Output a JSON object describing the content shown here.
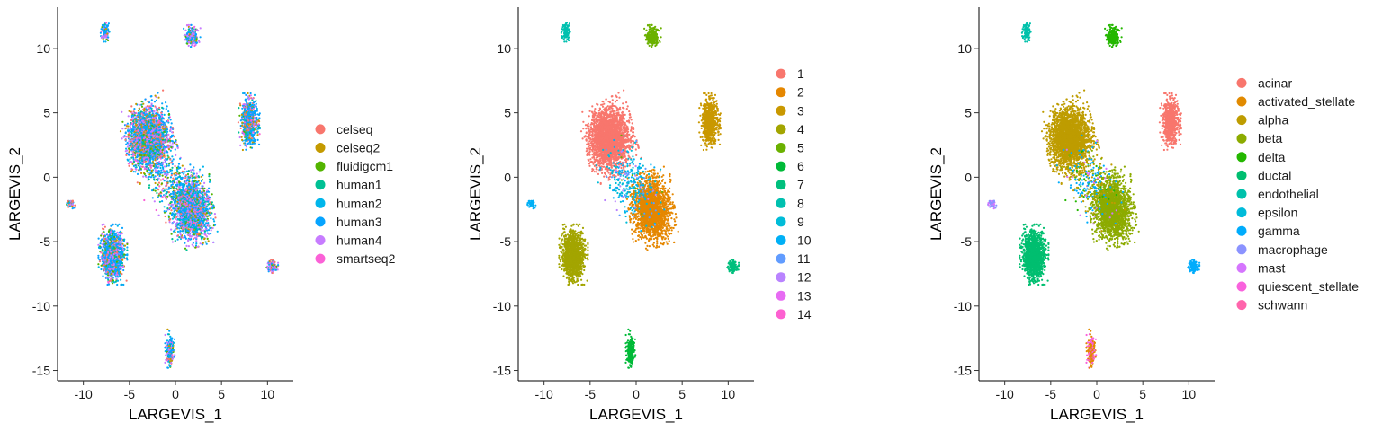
{
  "chart_data": [
    {
      "type": "scatter",
      "title": "",
      "xlabel": "LARGEVIS_1",
      "ylabel": "LARGEVIS_2",
      "xlim": [
        -12.8,
        12.8
      ],
      "ylim": [
        -15.8,
        13.2
      ],
      "x_ticks": [
        -10,
        -5,
        0,
        5,
        10
      ],
      "y_ticks": [
        -15,
        -10,
        -5,
        0,
        5,
        10
      ],
      "x_tick_labels": [
        "-10",
        "-5",
        "0",
        "5",
        "10"
      ],
      "y_tick_labels": [
        "-15",
        "-10",
        "-5",
        "0",
        "5",
        "10"
      ],
      "grid": false,
      "legend_position": "right",
      "color_by": "dataset",
      "series": [
        {
          "name": "celseq",
          "color": "#F8766D"
        },
        {
          "name": "celseq2",
          "color": "#C49A00"
        },
        {
          "name": "fluidigcm1",
          "color": "#53B400"
        },
        {
          "name": "human1",
          "color": "#00C094"
        },
        {
          "name": "human2",
          "color": "#00B6EB"
        },
        {
          "name": "human3",
          "color": "#06A4FF"
        },
        {
          "name": "human4",
          "color": "#C77CFF"
        },
        {
          "name": "smartseq2",
          "color": "#FB61D7"
        }
      ],
      "clusters": [
        {
          "x": -2.9,
          "y": 3.0,
          "sx": 1.05,
          "sy": 1.15,
          "rot": 0.35,
          "n": 2600,
          "mix": {
            "celseq": 0.08,
            "celseq2": 0.12,
            "fluidigcm1": 0.06,
            "human1": 0.08,
            "human2": 0.06,
            "human3": 0.33,
            "human4": 0.22,
            "smartseq2": 0.05
          }
        },
        {
          "x": 1.7,
          "y": -2.5,
          "sx": 0.95,
          "sy": 1.15,
          "rot": 0.2,
          "n": 2000,
          "mix": {
            "celseq": 0.05,
            "celseq2": 0.08,
            "fluidigcm1": 0.1,
            "human1": 0.1,
            "human2": 0.07,
            "human3": 0.3,
            "human4": 0.28,
            "smartseq2": 0.02
          }
        },
        {
          "x": -6.8,
          "y": -6.0,
          "sx": 0.6,
          "sy": 0.9,
          "rot": 0.0,
          "n": 1300,
          "mix": {
            "celseq": 0.06,
            "celseq2": 0.07,
            "fluidigcm1": 0.06,
            "human1": 0.07,
            "human2": 0.08,
            "human3": 0.4,
            "human4": 0.22,
            "smartseq2": 0.04
          }
        },
        {
          "x": 8.0,
          "y": 4.3,
          "sx": 0.45,
          "sy": 0.85,
          "rot": 0.0,
          "n": 700,
          "mix": {
            "celseq": 0.1,
            "celseq2": 0.12,
            "fluidigcm1": 0.05,
            "human1": 0.05,
            "human2": 0.06,
            "human3": 0.45,
            "human4": 0.12,
            "smartseq2": 0.05
          }
        },
        {
          "x": 1.8,
          "y": 10.9,
          "sx": 0.35,
          "sy": 0.35,
          "rot": 0.0,
          "n": 260,
          "mix": {
            "celseq": 0.05,
            "celseq2": 0.05,
            "fluidigcm1": 0.08,
            "human1": 0.08,
            "human2": 0.08,
            "human3": 0.3,
            "human4": 0.32,
            "smartseq2": 0.04
          }
        },
        {
          "x": -7.6,
          "y": 11.3,
          "sx": 0.2,
          "sy": 0.3,
          "rot": 0.0,
          "n": 110,
          "mix": {
            "celseq": 0.05,
            "celseq2": 0.05,
            "fluidigcm1": 0.05,
            "human1": 0.05,
            "human2": 0.1,
            "human3": 0.45,
            "human4": 0.2,
            "smartseq2": 0.05
          }
        },
        {
          "x": 10.5,
          "y": -6.9,
          "sx": 0.25,
          "sy": 0.22,
          "rot": 0.0,
          "n": 120,
          "mix": {
            "celseq": 0.15,
            "celseq2": 0.05,
            "fluidigcm1": 0.05,
            "human1": 0.05,
            "human2": 0.05,
            "human3": 0.25,
            "human4": 0.35,
            "smartseq2": 0.05
          }
        },
        {
          "x": -0.6,
          "y": -13.5,
          "sx": 0.2,
          "sy": 0.65,
          "rot": 0.0,
          "n": 220,
          "mix": {
            "celseq": 0.05,
            "celseq2": 0.05,
            "fluidigcm1": 0.05,
            "human1": 0.05,
            "human2": 0.1,
            "human3": 0.35,
            "human4": 0.3,
            "smartseq2": 0.05
          }
        },
        {
          "x": -11.4,
          "y": -2.1,
          "sx": 0.2,
          "sy": 0.14,
          "rot": 0.0,
          "n": 45,
          "mix": {
            "celseq": 0.25,
            "celseq2": 0.05,
            "fluidigcm1": 0.05,
            "human1": 0.05,
            "human2": 0.1,
            "human3": 0.3,
            "human4": 0.15,
            "smartseq2": 0.05
          }
        },
        {
          "x": -0.6,
          "y": -0.4,
          "sx": 1.6,
          "sy": 1.1,
          "rot": -0.7,
          "n": 300,
          "mix": {
            "celseq": 0.15,
            "celseq2": 0.05,
            "fluidigcm1": 0.1,
            "human1": 0.1,
            "human2": 0.1,
            "human3": 0.35,
            "human4": 0.1,
            "smartseq2": 0.05
          }
        }
      ]
    },
    {
      "type": "scatter",
      "title": "",
      "xlabel": "LARGEVIS_1",
      "ylabel": "LARGEVIS_2",
      "xlim": [
        -12.8,
        12.8
      ],
      "ylim": [
        -15.8,
        13.2
      ],
      "x_ticks": [
        -10,
        -5,
        0,
        5,
        10
      ],
      "y_ticks": [
        -15,
        -10,
        -5,
        0,
        5,
        10
      ],
      "x_tick_labels": [
        "-10",
        "-5",
        "0",
        "5",
        "10"
      ],
      "y_tick_labels": [
        "-15",
        "-10",
        "-5",
        "0",
        "5",
        "10"
      ],
      "grid": false,
      "legend_position": "right",
      "color_by": "cluster",
      "series": [
        {
          "name": "1",
          "color": "#F8766D"
        },
        {
          "name": "2",
          "color": "#E58700"
        },
        {
          "name": "3",
          "color": "#C99800"
        },
        {
          "name": "4",
          "color": "#A3A500"
        },
        {
          "name": "5",
          "color": "#6BB100"
        },
        {
          "name": "6",
          "color": "#00BA38"
        },
        {
          "name": "7",
          "color": "#00BF7D"
        },
        {
          "name": "8",
          "color": "#00C0AF"
        },
        {
          "name": "9",
          "color": "#00BCD8"
        },
        {
          "name": "10",
          "color": "#00B0F6"
        },
        {
          "name": "11",
          "color": "#619CFF"
        },
        {
          "name": "12",
          "color": "#B983FF"
        },
        {
          "name": "13",
          "color": "#E76BF3"
        },
        {
          "name": "14",
          "color": "#FD61D1"
        }
      ],
      "clusters": [
        {
          "x": -2.9,
          "y": 3.0,
          "sx": 1.05,
          "sy": 1.15,
          "rot": 0.35,
          "n": 2600,
          "mix": {
            "1": 1.0
          }
        },
        {
          "x": 1.7,
          "y": -2.5,
          "sx": 0.95,
          "sy": 1.15,
          "rot": 0.2,
          "n": 2000,
          "mix": {
            "2": 1.0
          }
        },
        {
          "x": -6.8,
          "y": -6.0,
          "sx": 0.6,
          "sy": 0.9,
          "rot": 0.0,
          "n": 1300,
          "mix": {
            "4": 1.0
          }
        },
        {
          "x": 8.0,
          "y": 4.3,
          "sx": 0.45,
          "sy": 0.85,
          "rot": 0.0,
          "n": 700,
          "mix": {
            "3": 1.0
          }
        },
        {
          "x": 1.8,
          "y": 10.9,
          "sx": 0.35,
          "sy": 0.35,
          "rot": 0.0,
          "n": 260,
          "mix": {
            "5": 1.0
          }
        },
        {
          "x": -7.6,
          "y": 11.3,
          "sx": 0.2,
          "sy": 0.3,
          "rot": 0.0,
          "n": 110,
          "mix": {
            "8": 1.0
          }
        },
        {
          "x": 10.5,
          "y": -6.9,
          "sx": 0.25,
          "sy": 0.22,
          "rot": 0.0,
          "n": 120,
          "mix": {
            "7": 1.0
          }
        },
        {
          "x": -0.6,
          "y": -13.5,
          "sx": 0.2,
          "sy": 0.65,
          "rot": 0.0,
          "n": 220,
          "mix": {
            "6": 1.0
          }
        },
        {
          "x": -11.4,
          "y": -2.1,
          "sx": 0.2,
          "sy": 0.14,
          "rot": 0.0,
          "n": 45,
          "mix": {
            "10": 1.0
          }
        },
        {
          "x": -0.6,
          "y": -0.4,
          "sx": 1.6,
          "sy": 1.1,
          "rot": -0.7,
          "n": 300,
          "mix": {
            "9": 0.45,
            "10": 0.25,
            "11": 0.15,
            "12": 0.1,
            "5": 0.05
          }
        }
      ]
    },
    {
      "type": "scatter",
      "title": "",
      "xlabel": "LARGEVIS_1",
      "ylabel": "LARGEVIS_2",
      "xlim": [
        -12.8,
        12.8
      ],
      "ylim": [
        -15.8,
        13.2
      ],
      "x_ticks": [
        -10,
        -5,
        0,
        5,
        10
      ],
      "y_ticks": [
        -15,
        -10,
        -5,
        0,
        5,
        10
      ],
      "x_tick_labels": [
        "-10",
        "-5",
        "0",
        "5",
        "10"
      ],
      "y_tick_labels": [
        "-15",
        "-10",
        "-5",
        "0",
        "5",
        "10"
      ],
      "grid": false,
      "legend_position": "right",
      "color_by": "cell type",
      "series": [
        {
          "name": "acinar",
          "color": "#F8766D"
        },
        {
          "name": "activated_stellate",
          "color": "#E18A00"
        },
        {
          "name": "alpha",
          "color": "#BE9C00"
        },
        {
          "name": "beta",
          "color": "#8CAB00"
        },
        {
          "name": "delta",
          "color": "#24B700"
        },
        {
          "name": "ductal",
          "color": "#00BE70"
        },
        {
          "name": "endothelial",
          "color": "#00C1AB"
        },
        {
          "name": "epsilon",
          "color": "#00BBDA"
        },
        {
          "name": "gamma",
          "color": "#00ACFC"
        },
        {
          "name": "macrophage",
          "color": "#8B93FF"
        },
        {
          "name": "mast",
          "color": "#D575FE"
        },
        {
          "name": "quiescent_stellate",
          "color": "#F962DD"
        },
        {
          "name": "schwann",
          "color": "#FF65AC"
        }
      ],
      "clusters": [
        {
          "x": -2.9,
          "y": 3.0,
          "sx": 1.05,
          "sy": 1.15,
          "rot": 0.35,
          "n": 2600,
          "mix": {
            "alpha": 1.0
          }
        },
        {
          "x": 1.7,
          "y": -2.5,
          "sx": 0.95,
          "sy": 1.15,
          "rot": 0.2,
          "n": 2000,
          "mix": {
            "beta": 1.0
          }
        },
        {
          "x": -6.8,
          "y": -6.0,
          "sx": 0.6,
          "sy": 0.9,
          "rot": 0.0,
          "n": 1300,
          "mix": {
            "ductal": 1.0
          }
        },
        {
          "x": 8.0,
          "y": 4.3,
          "sx": 0.45,
          "sy": 0.85,
          "rot": 0.0,
          "n": 700,
          "mix": {
            "acinar": 1.0
          }
        },
        {
          "x": 1.8,
          "y": 10.9,
          "sx": 0.35,
          "sy": 0.35,
          "rot": 0.0,
          "n": 260,
          "mix": {
            "delta": 1.0
          }
        },
        {
          "x": -7.6,
          "y": 11.3,
          "sx": 0.2,
          "sy": 0.3,
          "rot": 0.0,
          "n": 110,
          "mix": {
            "endothelial": 1.0
          }
        },
        {
          "x": 10.5,
          "y": -6.9,
          "sx": 0.25,
          "sy": 0.22,
          "rot": 0.0,
          "n": 120,
          "mix": {
            "gamma": 1.0
          }
        },
        {
          "x": -0.6,
          "y": -13.5,
          "sx": 0.2,
          "sy": 0.65,
          "rot": 0.0,
          "n": 220,
          "mix": {
            "activated_stellate": 0.5,
            "quiescent_stellate": 0.35,
            "schwann": 0.15
          }
        },
        {
          "x": -11.4,
          "y": -2.1,
          "sx": 0.2,
          "sy": 0.14,
          "rot": 0.0,
          "n": 45,
          "mix": {
            "macrophage": 0.6,
            "mast": 0.4
          }
        },
        {
          "x": -0.6,
          "y": -0.4,
          "sx": 1.6,
          "sy": 1.1,
          "rot": -0.7,
          "n": 300,
          "mix": {
            "gamma": 0.35,
            "beta": 0.25,
            "alpha": 0.2,
            "mast": 0.1,
            "delta": 0.1
          }
        }
      ]
    }
  ]
}
